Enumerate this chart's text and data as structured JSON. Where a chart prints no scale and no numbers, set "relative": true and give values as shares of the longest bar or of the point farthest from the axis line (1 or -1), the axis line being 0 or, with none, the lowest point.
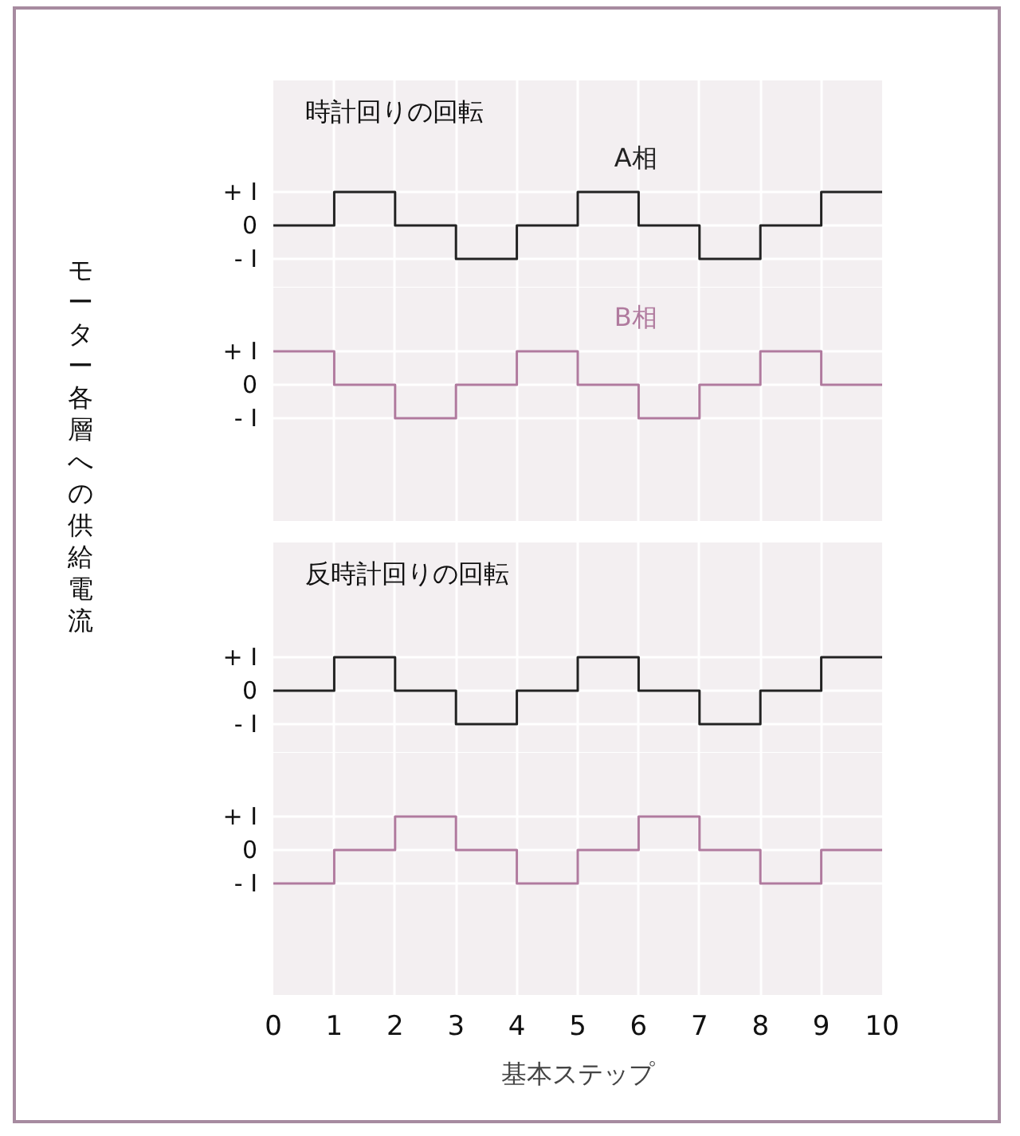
{
  "chart_data": [
    {
      "type": "step",
      "title": "時計回りの回転",
      "ylabel": "モーター各層への供給電流",
      "x": [
        0,
        1,
        2,
        3,
        4,
        5,
        6,
        7,
        8,
        9,
        10
      ],
      "series": [
        {
          "name": "A相",
          "color": "#222222",
          "values": [
            0,
            1,
            0,
            -1,
            0,
            1,
            0,
            -1,
            0,
            1,
            1
          ]
        }
      ],
      "relative": true,
      "annotations": [
        "+ I",
        "0",
        "- I"
      ],
      "xlim": [
        0,
        10
      ],
      "xticks": [
        0,
        1,
        2,
        3,
        4,
        5,
        6,
        7,
        8,
        9,
        10
      ],
      "grid": true,
      "tick_labels": "y"
    },
    {
      "type": "step",
      "x": [
        0,
        1,
        2,
        3,
        4,
        5,
        6,
        7,
        8,
        9,
        10
      ],
      "series": [
        {
          "name": "B相",
          "color": "#b07a9e",
          "values": [
            1,
            0,
            -1,
            0,
            1,
            0,
            -1,
            0,
            1,
            0,
            0
          ]
        }
      ],
      "relative": true,
      "annotations": [
        "+ I",
        "0",
        "- I"
      ],
      "xlim": [
        0,
        10
      ],
      "xticks": [
        0,
        1,
        2,
        3,
        4,
        5,
        6,
        7,
        8,
        9,
        10
      ],
      "grid": true,
      "tick_labels": "y"
    },
    {
      "type": "step",
      "title": "反時計回りの回転",
      "x": [
        0,
        1,
        2,
        3,
        4,
        5,
        6,
        7,
        8,
        9,
        10
      ],
      "series": [
        {
          "color": "#222222",
          "values": [
            0,
            1,
            0,
            -1,
            0,
            1,
            0,
            -1,
            0,
            1,
            1
          ]
        }
      ],
      "relative": true,
      "annotations": [
        "+ I",
        "0",
        "- I"
      ],
      "xlim": [
        0,
        10
      ],
      "xticks": [
        0,
        1,
        2,
        3,
        4,
        5,
        6,
        7,
        8,
        9,
        10
      ],
      "grid": true,
      "tick_labels": "y"
    },
    {
      "type": "step",
      "xlabel": "基本ステップ",
      "x": [
        0,
        1,
        2,
        3,
        4,
        5,
        6,
        7,
        8,
        9,
        10
      ],
      "series": [
        {
          "color": "#b07a9e",
          "values": [
            -1,
            0,
            1,
            0,
            -1,
            0,
            1,
            0,
            -1,
            0,
            0
          ]
        }
      ],
      "relative": true,
      "annotations": [
        "+ I",
        "0",
        "- I"
      ],
      "xlim": [
        0,
        10
      ],
      "xticks": [
        0,
        1,
        2,
        3,
        4,
        5,
        6,
        7,
        8,
        9,
        10
      ],
      "grid": true
    }
  ]
}
